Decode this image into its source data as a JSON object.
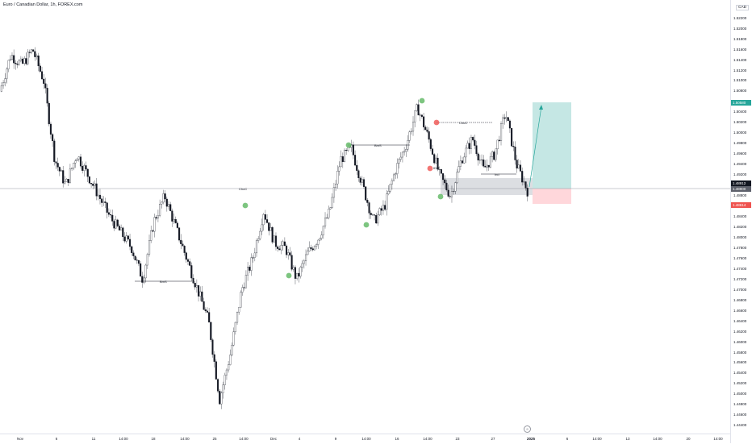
{
  "title": "Euro / Canadian Dollar, 1h, FOREX.com",
  "currency": "CAD",
  "price_axis": {
    "ymin": 1.4425,
    "ymax": 1.5255,
    "ticks": [
      "1.52200",
      "1.52000",
      "1.51800",
      "1.51600",
      "1.51400",
      "1.51200",
      "1.51000",
      "1.50800",
      "1.50600",
      "1.50400",
      "1.50200",
      "1.50000",
      "1.49800",
      "1.49600",
      "1.49400",
      "1.49200",
      "1.49000",
      "1.48800",
      "1.48600",
      "1.48400",
      "1.48200",
      "1.48000",
      "1.47800",
      "1.47600",
      "1.47400",
      "1.47200",
      "1.47000",
      "1.46800",
      "1.46600",
      "1.46400",
      "1.46200",
      "1.46000",
      "1.45800",
      "1.45600",
      "1.45400",
      "1.45200",
      "1.45000",
      "1.44800",
      "1.44600",
      "1.44400"
    ]
  },
  "badges": {
    "target": "1.50580",
    "entry": "1.48912",
    "entry2": "1.48900",
    "stop": "1.48614"
  },
  "time_axis": [
    {
      "label": "Nov",
      "bold": false
    },
    {
      "label": "6",
      "bold": false
    },
    {
      "label": "11",
      "bold": false
    },
    {
      "label": "14:00",
      "bold": false
    },
    {
      "label": "18",
      "bold": false
    },
    {
      "label": "14:00",
      "bold": false
    },
    {
      "label": "25",
      "bold": false
    },
    {
      "label": "14:00",
      "bold": false
    },
    {
      "label": "Dec",
      "bold": false
    },
    {
      "label": "4",
      "bold": false
    },
    {
      "label": "9",
      "bold": false
    },
    {
      "label": "14:00",
      "bold": false
    },
    {
      "label": "16",
      "bold": false
    },
    {
      "label": "14:00",
      "bold": false
    },
    {
      "label": "23",
      "bold": false
    },
    {
      "label": "27",
      "bold": false
    },
    {
      "label": "2025",
      "bold": true
    },
    {
      "label": "6",
      "bold": false
    },
    {
      "label": "14:00",
      "bold": false
    },
    {
      "label": "13",
      "bold": false
    },
    {
      "label": "14:00",
      "bold": false
    },
    {
      "label": "20",
      "bold": false
    },
    {
      "label": "14:00",
      "bold": false
    }
  ],
  "annotations": {
    "choch_1": "ChoC",
    "bos_1": "BmS",
    "bos_2": "BmS",
    "choch_2": "ChoC",
    "idm_1": "IDM",
    "ind_1": "Ind"
  },
  "goto_label": "⊘",
  "colors": {
    "up": "#ffffff",
    "down": "#131722",
    "swing_high": "#ef5350",
    "swing_low": "#66bb6a",
    "target_zone": "#b2dfdb",
    "stop_zone": "#ffcdd2",
    "order_block": "#b2b5be"
  },
  "chart_data": {
    "type": "candlestick",
    "symbol": "EURCAD",
    "interval": "1h",
    "close_path": [
      {
        "date": "Nov 1",
        "price": 1.508
      },
      {
        "date": "Nov 2",
        "price": 1.515
      },
      {
        "date": "Nov 4",
        "price": 1.513
      },
      {
        "date": "Nov 5",
        "price": 1.516
      },
      {
        "date": "Nov 5",
        "price": 1.51
      },
      {
        "date": "Nov 6",
        "price": 1.495
      },
      {
        "date": "Nov 6",
        "price": 1.49
      },
      {
        "date": "Nov 7",
        "price": 1.496
      },
      {
        "date": "Nov 8",
        "price": 1.492
      },
      {
        "date": "Nov 11",
        "price": 1.488
      },
      {
        "date": "Nov 12",
        "price": 1.484
      },
      {
        "date": "Nov 13",
        "price": 1.481
      },
      {
        "date": "Nov 14",
        "price": 1.478
      },
      {
        "date": "Nov 15",
        "price": 1.472
      },
      {
        "date": "Nov 18",
        "price": 1.483
      },
      {
        "date": "Nov 19",
        "price": 1.488
      },
      {
        "date": "Nov 20",
        "price": 1.482
      },
      {
        "date": "Nov 21",
        "price": 1.476
      },
      {
        "date": "Nov 22",
        "price": 1.47
      },
      {
        "date": "Nov 25",
        "price": 1.464
      },
      {
        "date": "Nov 25",
        "price": 1.449
      },
      {
        "date": "Nov 26",
        "price": 1.458
      },
      {
        "date": "Nov 27",
        "price": 1.47
      },
      {
        "date": "Nov 28",
        "price": 1.476
      },
      {
        "date": "Nov 28",
        "price": 1.485
      },
      {
        "date": "Nov 29",
        "price": 1.479
      },
      {
        "date": "Dec 2",
        "price": 1.478
      },
      {
        "date": "Dec 3",
        "price": 1.472
      },
      {
        "date": "Dec 4",
        "price": 1.477
      },
      {
        "date": "Dec 5",
        "price": 1.48
      },
      {
        "date": "Dec 6",
        "price": 1.485
      },
      {
        "date": "Dec 9",
        "price": 1.495
      },
      {
        "date": "Dec 10",
        "price": 1.497
      },
      {
        "date": "Dec 11",
        "price": 1.49
      },
      {
        "date": "Dec 12",
        "price": 1.483
      },
      {
        "date": "Dec 13",
        "price": 1.486
      },
      {
        "date": "Dec 16",
        "price": 1.493
      },
      {
        "date": "Dec 17",
        "price": 1.498
      },
      {
        "date": "Dec 18",
        "price": 1.505
      },
      {
        "date": "Dec 19",
        "price": 1.499
      },
      {
        "date": "Dec 20",
        "price": 1.492
      },
      {
        "date": "Dec 20",
        "price": 1.488
      },
      {
        "date": "Dec 23",
        "price": 1.495
      },
      {
        "date": "Dec 24",
        "price": 1.499
      },
      {
        "date": "Dec 26",
        "price": 1.493
      },
      {
        "date": "Dec 27",
        "price": 1.496
      },
      {
        "date": "Dec 30",
        "price": 1.504
      },
      {
        "date": "Dec 31",
        "price": 1.494
      },
      {
        "date": "Jan 2",
        "price": 1.489
      }
    ]
  }
}
